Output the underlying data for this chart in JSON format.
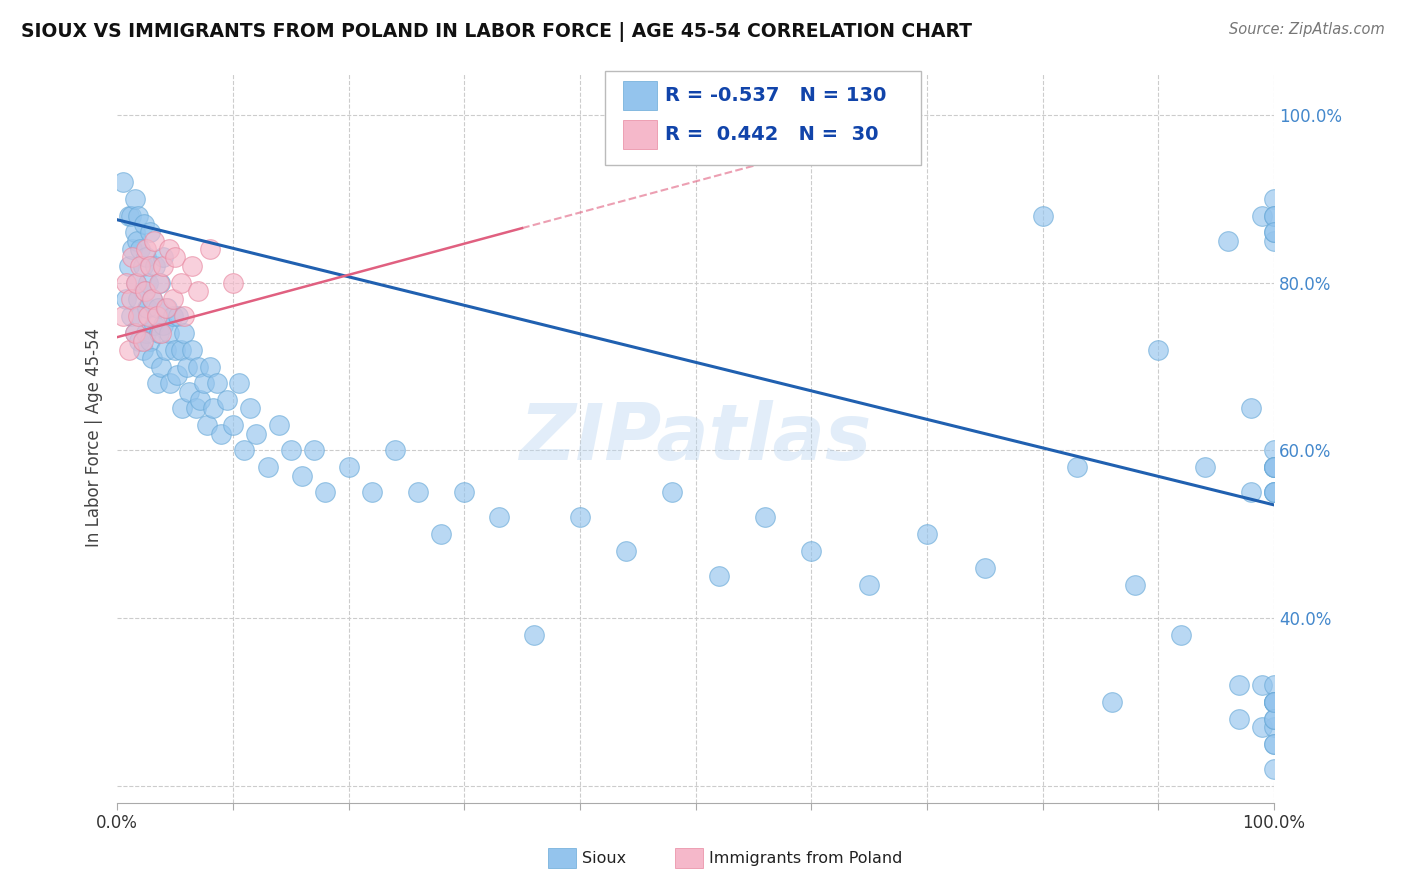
{
  "title": "SIOUX VS IMMIGRANTS FROM POLAND IN LABOR FORCE | AGE 45-54 CORRELATION CHART",
  "source": "Source: ZipAtlas.com",
  "ylabel": "In Labor Force | Age 45-54",
  "xlim": [
    0.0,
    1.0
  ],
  "ylim": [
    0.18,
    1.05
  ],
  "legend_R1": "-0.537",
  "legend_N1": "130",
  "legend_R2": "0.442",
  "legend_N2": "30",
  "legend_label1": "Sioux",
  "legend_label2": "Immigrants from Poland",
  "blue_color": "#94c4ed",
  "pink_color": "#f5b8ca",
  "trend_blue_color": "#2060b0",
  "trend_pink_color": "#e06080",
  "watermark": "ZIPatlas",
  "blue_trend_y_start": 0.875,
  "blue_trend_y_end": 0.535,
  "pink_trend_x_end": 0.35,
  "pink_trend_y_start": 0.735,
  "pink_trend_y_end": 0.865,
  "blue_scatter_x": [
    0.005,
    0.008,
    0.01,
    0.01,
    0.012,
    0.012,
    0.013,
    0.015,
    0.015,
    0.015,
    0.016,
    0.017,
    0.018,
    0.018,
    0.019,
    0.02,
    0.02,
    0.022,
    0.022,
    0.023,
    0.024,
    0.025,
    0.025,
    0.026,
    0.027,
    0.028,
    0.028,
    0.03,
    0.03,
    0.032,
    0.033,
    0.034,
    0.035,
    0.036,
    0.037,
    0.038,
    0.04,
    0.04,
    0.042,
    0.043,
    0.045,
    0.046,
    0.048,
    0.05,
    0.052,
    0.053,
    0.055,
    0.056,
    0.058,
    0.06,
    0.062,
    0.065,
    0.068,
    0.07,
    0.072,
    0.075,
    0.078,
    0.08,
    0.083,
    0.086,
    0.09,
    0.095,
    0.1,
    0.105,
    0.11,
    0.115,
    0.12,
    0.13,
    0.14,
    0.15,
    0.16,
    0.17,
    0.18,
    0.2,
    0.22,
    0.24,
    0.26,
    0.28,
    0.3,
    0.33,
    0.36,
    0.4,
    0.44,
    0.48,
    0.52,
    0.56,
    0.6,
    0.65,
    0.7,
    0.75,
    0.8,
    0.83,
    0.86,
    0.88,
    0.9,
    0.92,
    0.94,
    0.96,
    0.97,
    0.97,
    0.98,
    0.98,
    0.99,
    0.99,
    0.99,
    1.0,
    1.0,
    1.0,
    1.0,
    1.0,
    1.0,
    1.0,
    1.0,
    1.0,
    1.0,
    1.0,
    1.0,
    1.0,
    1.0,
    1.0,
    1.0,
    1.0,
    1.0,
    1.0,
    1.0,
    1.0,
    1.0,
    1.0,
    1.0,
    1.0
  ],
  "blue_scatter_y": [
    0.92,
    0.78,
    0.88,
    0.82,
    0.88,
    0.76,
    0.84,
    0.86,
    0.74,
    0.9,
    0.8,
    0.85,
    0.78,
    0.88,
    0.73,
    0.84,
    0.76,
    0.82,
    0.72,
    0.87,
    0.79,
    0.74,
    0.83,
    0.77,
    0.8,
    0.73,
    0.86,
    0.71,
    0.78,
    0.75,
    0.82,
    0.68,
    0.77,
    0.74,
    0.8,
    0.7,
    0.75,
    0.83,
    0.72,
    0.77,
    0.74,
    0.68,
    0.76,
    0.72,
    0.69,
    0.76,
    0.72,
    0.65,
    0.74,
    0.7,
    0.67,
    0.72,
    0.65,
    0.7,
    0.66,
    0.68,
    0.63,
    0.7,
    0.65,
    0.68,
    0.62,
    0.66,
    0.63,
    0.68,
    0.6,
    0.65,
    0.62,
    0.58,
    0.63,
    0.6,
    0.57,
    0.6,
    0.55,
    0.58,
    0.55,
    0.6,
    0.55,
    0.5,
    0.55,
    0.52,
    0.38,
    0.52,
    0.48,
    0.55,
    0.45,
    0.52,
    0.48,
    0.44,
    0.5,
    0.46,
    0.88,
    0.58,
    0.3,
    0.44,
    0.72,
    0.38,
    0.58,
    0.85,
    0.28,
    0.32,
    0.65,
    0.55,
    0.88,
    0.27,
    0.32,
    0.85,
    0.27,
    0.9,
    0.3,
    0.6,
    0.88,
    0.58,
    0.32,
    0.86,
    0.55,
    0.3,
    0.58,
    0.28,
    0.58,
    0.55,
    0.88,
    0.3,
    0.25,
    0.55,
    0.28,
    0.86,
    0.3,
    0.22,
    0.58,
    0.25
  ],
  "pink_scatter_x": [
    0.005,
    0.008,
    0.01,
    0.012,
    0.013,
    0.015,
    0.016,
    0.018,
    0.02,
    0.022,
    0.024,
    0.025,
    0.027,
    0.028,
    0.03,
    0.032,
    0.034,
    0.036,
    0.038,
    0.04,
    0.042,
    0.045,
    0.048,
    0.05,
    0.055,
    0.058,
    0.065,
    0.07,
    0.08,
    0.1
  ],
  "pink_scatter_y": [
    0.76,
    0.8,
    0.72,
    0.78,
    0.83,
    0.74,
    0.8,
    0.76,
    0.82,
    0.73,
    0.79,
    0.84,
    0.76,
    0.82,
    0.78,
    0.85,
    0.76,
    0.8,
    0.74,
    0.82,
    0.77,
    0.84,
    0.78,
    0.83,
    0.8,
    0.76,
    0.82,
    0.79,
    0.84,
    0.8
  ]
}
